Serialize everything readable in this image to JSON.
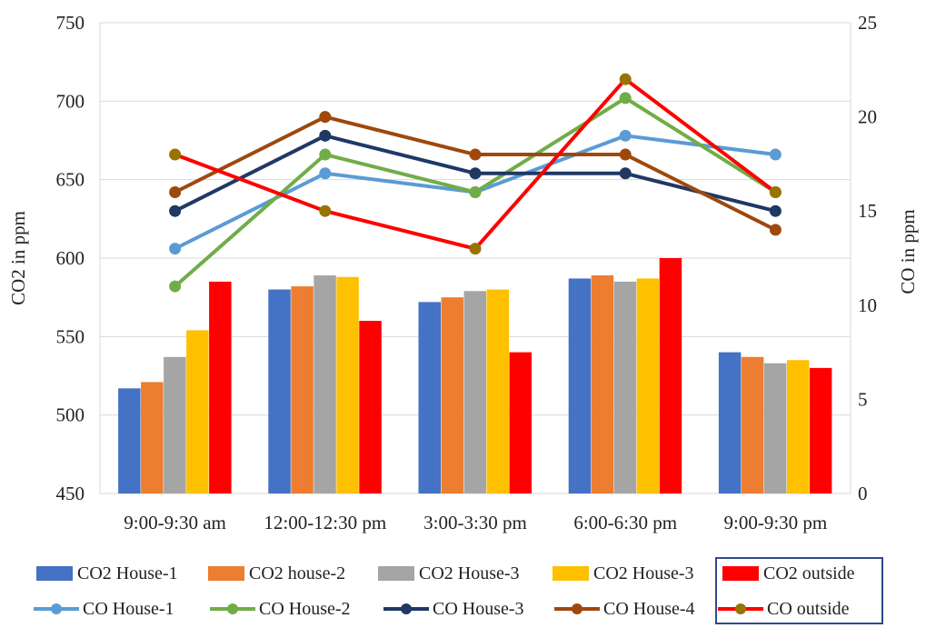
{
  "chart_data": {
    "type": "bar",
    "categories": [
      "9:00-9:30 am",
      "12:00-12:30 pm",
      "3:00-3:30 pm",
      "6:00-6:30 pm",
      "9:00-9:30 pm"
    ],
    "ylabel": "CO2 in ppm",
    "ylabel_right": "CO in ppm",
    "ylim": [
      450,
      750
    ],
    "yticks": [
      "450",
      "500",
      "550",
      "600",
      "650",
      "700",
      "750"
    ],
    "ylim_right": [
      0,
      25
    ],
    "yticks_right": [
      "0",
      "5",
      "10",
      "15",
      "20",
      "25"
    ],
    "grid": "horizontal",
    "legend_position": "bottom",
    "bar_series": [
      {
        "name": "CO2 House-1",
        "color": "#4472c4",
        "values": [
          517,
          580,
          572,
          587,
          540
        ]
      },
      {
        "name": "CO2 house-2",
        "color": "#ed7d31",
        "values": [
          521,
          582,
          575,
          589,
          537
        ]
      },
      {
        "name": "CO2 House-3",
        "color": "#a5a5a5",
        "values": [
          537,
          589,
          579,
          585,
          533
        ]
      },
      {
        "name": "CO2 House-3",
        "color": "#ffc000",
        "values": [
          554,
          588,
          580,
          587,
          535
        ]
      },
      {
        "name": "CO2 outside",
        "color": "#ff0000",
        "values": [
          585,
          560,
          540,
          600,
          530
        ]
      }
    ],
    "line_series": [
      {
        "name": "CO House-1",
        "color": "#5b9bd5",
        "marker": "#5b9bd5",
        "values": [
          13,
          17,
          16,
          19,
          18
        ]
      },
      {
        "name": "CO House-2",
        "color": "#70ad47",
        "marker": "#70ad47",
        "values": [
          11,
          18,
          16,
          21,
          16
        ]
      },
      {
        "name": "CO House-3",
        "color": "#1f3864",
        "marker": "#1f3864",
        "values": [
          15,
          19,
          17,
          17,
          15
        ]
      },
      {
        "name": "CO House-4",
        "color": "#9e480e",
        "marker": "#9e480e",
        "values": [
          16,
          20,
          18,
          18,
          14
        ]
      },
      {
        "name": "CO outside",
        "color": "#ff0000",
        "marker": "#997300",
        "values": [
          18,
          15,
          13,
          22,
          16
        ]
      }
    ]
  }
}
